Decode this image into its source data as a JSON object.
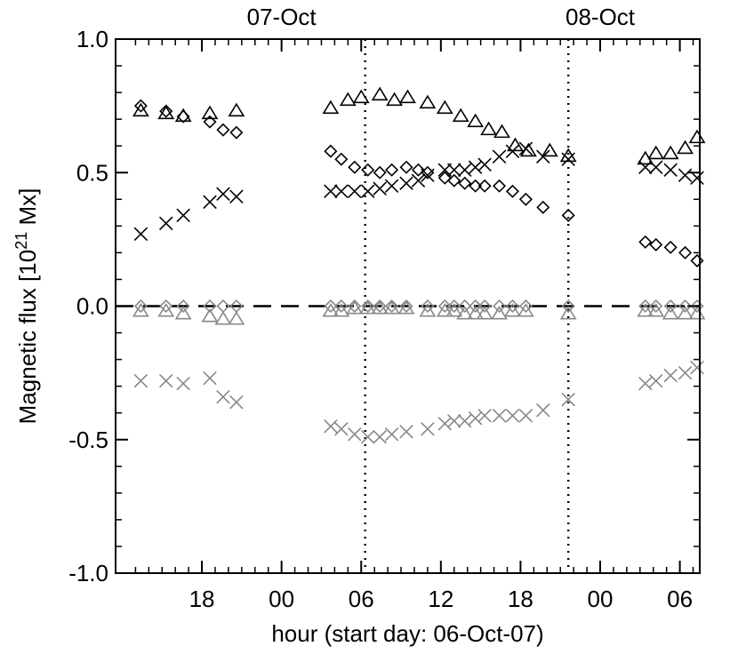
{
  "chart_data": {
    "type": "scatter",
    "title": "",
    "xlabel": "hour (start day: 06-Oct-07)",
    "ylabel": "Magnetic flux [10",
    "ylabel_sup": "21",
    "ylabel_tail": " Mx]",
    "xlim": [
      11.5,
      55.5
    ],
    "ylim": [
      -1.0,
      1.0
    ],
    "grid": false,
    "x_ticks": [
      {
        "value": 18,
        "label": "18"
      },
      {
        "value": 24,
        "label": "00"
      },
      {
        "value": 30,
        "label": "06"
      },
      {
        "value": 36,
        "label": "12"
      },
      {
        "value": 42,
        "label": "18"
      },
      {
        "value": 48,
        "label": "00"
      },
      {
        "value": 54,
        "label": "06"
      }
    ],
    "y_ticks": [
      {
        "value": 1.0,
        "label": "1.0"
      },
      {
        "value": 0.5,
        "label": "0.5"
      },
      {
        "value": 0.0,
        "label": "0.0"
      },
      {
        "value": -0.5,
        "label": "-0.5"
      },
      {
        "value": -1.0,
        "label": "-1.0"
      }
    ],
    "top_labels": [
      {
        "value": 24,
        "label": "07-Oct"
      },
      {
        "value": 48,
        "label": "08-Oct"
      }
    ],
    "vlines": [
      30.3,
      45.6
    ],
    "hline": 0.0,
    "colors": {
      "black": "#000000",
      "gray": "#888888"
    },
    "series": [
      {
        "marker": "triangle",
        "color": "black",
        "x": [
          13.4,
          15.3,
          16.6,
          18.6,
          20.6,
          27.7,
          29.0,
          30.0,
          31.4,
          32.5,
          33.5,
          35.0,
          36.3,
          37.5,
          38.6,
          39.6,
          40.6,
          41.6,
          42.6,
          44.2,
          45.6,
          51.4,
          52.2,
          53.3,
          54.4,
          55.3
        ],
        "y": [
          0.73,
          0.72,
          0.71,
          0.72,
          0.73,
          0.74,
          0.77,
          0.78,
          0.79,
          0.77,
          0.78,
          0.76,
          0.74,
          0.71,
          0.69,
          0.66,
          0.65,
          0.6,
          0.58,
          0.58,
          0.56,
          0.55,
          0.57,
          0.57,
          0.59,
          0.63
        ]
      },
      {
        "marker": "diamond",
        "color": "black",
        "x": [
          13.4,
          15.3,
          16.6,
          18.6,
          19.6,
          20.6,
          27.7,
          28.5,
          29.5,
          30.5,
          31.4,
          32.3,
          33.4,
          34.3,
          35.0,
          36.3,
          37.0,
          37.8,
          38.6,
          39.3,
          40.4,
          41.4,
          42.4,
          43.7,
          45.6,
          51.4,
          52.2,
          53.3,
          54.4,
          55.3
        ],
        "y": [
          0.75,
          0.73,
          0.71,
          0.69,
          0.66,
          0.65,
          0.58,
          0.55,
          0.52,
          0.51,
          0.5,
          0.51,
          0.52,
          0.51,
          0.5,
          0.48,
          0.47,
          0.46,
          0.45,
          0.45,
          0.45,
          0.43,
          0.4,
          0.37,
          0.34,
          0.24,
          0.23,
          0.22,
          0.2,
          0.17
        ]
      },
      {
        "marker": "cross",
        "color": "black",
        "x": [
          13.4,
          15.3,
          16.6,
          18.6,
          19.6,
          20.6,
          27.7,
          28.5,
          29.5,
          30.5,
          31.4,
          32.3,
          33.4,
          34.3,
          35.0,
          36.3,
          37.0,
          37.8,
          38.6,
          39.3,
          40.4,
          41.4,
          42.4,
          43.7,
          45.6,
          51.4,
          52.2,
          53.3,
          54.4,
          55.3
        ],
        "y": [
          0.27,
          0.31,
          0.34,
          0.39,
          0.42,
          0.41,
          0.43,
          0.43,
          0.43,
          0.43,
          0.44,
          0.45,
          0.46,
          0.47,
          0.49,
          0.51,
          0.51,
          0.51,
          0.52,
          0.53,
          0.56,
          0.58,
          0.59,
          0.56,
          0.55,
          0.52,
          0.52,
          0.51,
          0.49,
          0.48
        ]
      },
      {
        "marker": "triangle",
        "color": "gray",
        "x": [
          13.4,
          15.3,
          16.6,
          18.6,
          19.6,
          20.6,
          27.7,
          28.5,
          29.5,
          30.5,
          31.4,
          32.3,
          33.4,
          35.0,
          36.3,
          37.0,
          37.8,
          38.6,
          39.3,
          40.4,
          41.4,
          42.4,
          45.6,
          51.4,
          52.2,
          53.3,
          54.4,
          55.3
        ],
        "y": [
          -0.02,
          -0.02,
          -0.03,
          -0.04,
          -0.05,
          -0.05,
          -0.02,
          -0.02,
          -0.01,
          -0.01,
          -0.01,
          -0.01,
          -0.01,
          -0.02,
          -0.02,
          -0.02,
          -0.03,
          -0.03,
          -0.03,
          -0.03,
          -0.02,
          -0.02,
          -0.03,
          -0.02,
          -0.02,
          -0.03,
          -0.03,
          -0.03
        ]
      },
      {
        "marker": "diamond",
        "color": "gray",
        "x": [
          13.4,
          15.3,
          16.6,
          18.6,
          19.6,
          20.6,
          27.7,
          28.5,
          29.5,
          30.5,
          31.4,
          32.3,
          33.4,
          35.0,
          36.3,
          37.0,
          37.8,
          38.6,
          39.3,
          40.4,
          41.4,
          42.4,
          45.6,
          51.4,
          52.2,
          53.3,
          54.4,
          55.3
        ],
        "y": [
          0.0,
          0.0,
          0.0,
          0.0,
          0.0,
          0.0,
          0.0,
          0.0,
          0.0,
          0.0,
          0.0,
          0.0,
          0.0,
          0.0,
          0.0,
          0.0,
          0.0,
          0.0,
          0.0,
          0.0,
          0.0,
          0.0,
          0.0,
          0.0,
          0.0,
          0.0,
          0.0,
          0.0
        ]
      },
      {
        "marker": "cross",
        "color": "gray",
        "x": [
          13.4,
          15.3,
          16.6,
          18.6,
          19.6,
          20.6,
          27.7,
          28.5,
          29.5,
          30.5,
          31.4,
          32.3,
          33.4,
          35.0,
          36.3,
          37.0,
          37.8,
          38.6,
          39.3,
          40.4,
          41.4,
          42.4,
          43.7,
          45.6,
          51.4,
          52.2,
          53.3,
          54.4,
          55.3
        ],
        "y": [
          -0.28,
          -0.28,
          -0.29,
          -0.27,
          -0.34,
          -0.36,
          -0.45,
          -0.46,
          -0.48,
          -0.49,
          -0.49,
          -0.48,
          -0.47,
          -0.46,
          -0.44,
          -0.43,
          -0.43,
          -0.42,
          -0.41,
          -0.41,
          -0.41,
          -0.41,
          -0.39,
          -0.35,
          -0.29,
          -0.28,
          -0.26,
          -0.25,
          -0.23
        ]
      }
    ]
  }
}
